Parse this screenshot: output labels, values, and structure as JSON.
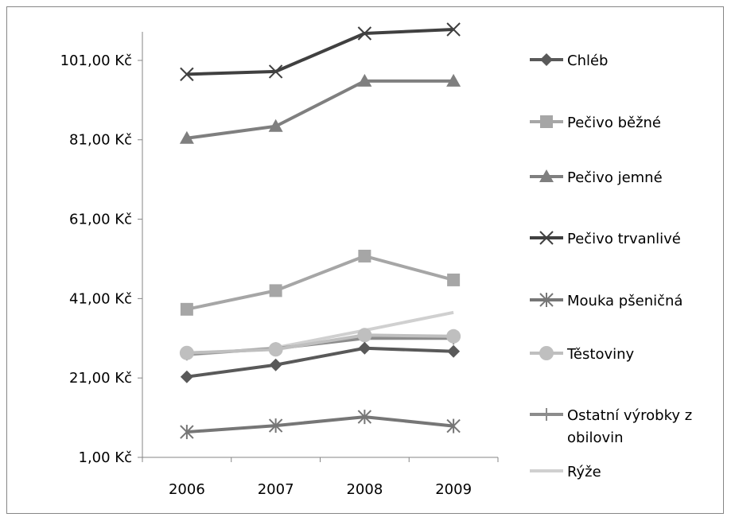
{
  "chart_data": {
    "type": "line",
    "categories": [
      "2006",
      "2007",
      "2008",
      "2009"
    ],
    "y_ticks": [
      "1,00 Kč",
      "21,00 Kč",
      "41,00 Kč",
      "61,00 Kč",
      "81,00 Kč",
      "101,00 Kč"
    ],
    "ylim": [
      1,
      109
    ],
    "grid": false,
    "legend_position": "right",
    "series": [
      {
        "name": "Chléb",
        "marker": "diamond",
        "color": "#595959",
        "values": [
          21.3,
          24.3,
          28.5,
          27.7
        ]
      },
      {
        "name": "Pečivo běžné",
        "marker": "square",
        "color": "#a6a6a6",
        "values": [
          38.3,
          43.0,
          51.7,
          45.7
        ]
      },
      {
        "name": "Pečivo jemné",
        "marker": "triangle",
        "color": "#7f7f7f",
        "values": [
          81.4,
          84.4,
          95.8,
          95.8
        ]
      },
      {
        "name": "Pečivo trvanlivé",
        "marker": "x",
        "color": "#404040",
        "values": [
          97.5,
          98.2,
          107.8,
          108.8
        ]
      },
      {
        "name": "Mouka pšeničná",
        "marker": "asterisk",
        "color": "#767676",
        "values": [
          7.4,
          9.0,
          11.2,
          8.9
        ]
      },
      {
        "name": "Těstoviny",
        "marker": "circle",
        "color": "#bfbfbf",
        "values": [
          27.3,
          28.2,
          31.8,
          31.5
        ]
      },
      {
        "name": "Ostatní výrobky z obilovin",
        "marker": "plus",
        "color": "#8c8c8c",
        "values": [
          27.0,
          28.4,
          31.0,
          31.0
        ]
      },
      {
        "name": "Rýže",
        "marker": "none",
        "color": "#d0d0d0",
        "values": [
          26.8,
          28.6,
          33.0,
          37.5
        ]
      }
    ],
    "legend_lines": [
      [
        "Chléb"
      ],
      [
        "Pečivo běžné"
      ],
      [
        "Pečivo jemné"
      ],
      [
        "Pečivo trvanlivé"
      ],
      [
        "Mouka pšeničná"
      ],
      [
        "Těstoviny"
      ],
      [
        "Ostatní výrobky z",
        "obilovin"
      ],
      [
        "Rýže"
      ]
    ]
  }
}
